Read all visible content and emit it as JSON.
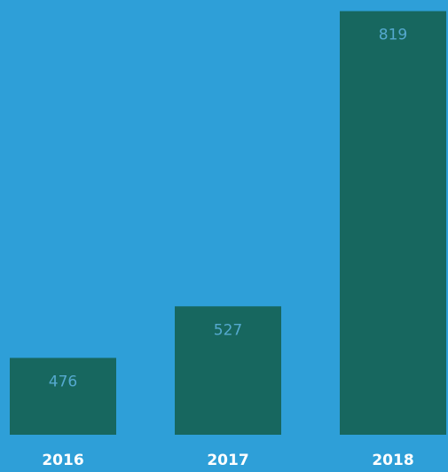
{
  "chart_data": {
    "type": "bar",
    "categories": [
      "2016",
      "2017",
      "2018"
    ],
    "values": [
      476,
      527,
      819
    ],
    "color": "#17675f",
    "background": "#2e9fd8",
    "ylim": [
      400,
      830
    ]
  }
}
